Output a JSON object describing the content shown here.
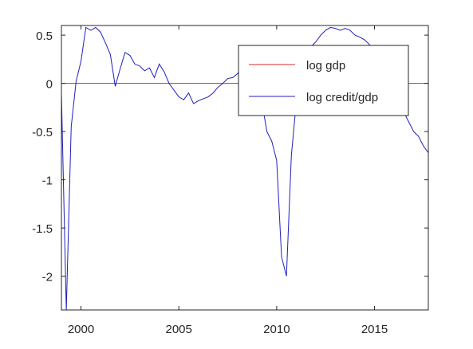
{
  "chart_data": {
    "type": "line",
    "title": "",
    "xlabel": "",
    "ylabel": "",
    "xlim": [
      1999.0,
      2017.75
    ],
    "ylim": [
      -2.35,
      0.6
    ],
    "x_ticks": [
      2000,
      2005,
      2010,
      2015
    ],
    "y_ticks": [
      0.5,
      0,
      -0.5,
      -1,
      -1.5,
      -2
    ],
    "x_tick_labels": [
      "2000",
      "2005",
      "2010",
      "2015"
    ],
    "y_tick_labels": [
      "0.5",
      "0",
      "-0.5",
      "-1",
      "-1.5",
      "-2"
    ],
    "grid": false,
    "legend_position": "top-right",
    "series": [
      {
        "name": "log gdp",
        "color": "#d62728",
        "x": [
          1999.0,
          2017.75
        ],
        "y": [
          0.0,
          0.0
        ]
      },
      {
        "name": "log credit/gdp",
        "color": "#1f1fbf",
        "x": [
          1999.0,
          1999.25,
          1999.5,
          1999.75,
          2000.0,
          2000.25,
          2000.5,
          2000.75,
          2001.0,
          2001.25,
          2001.5,
          2001.75,
          2002.0,
          2002.25,
          2002.5,
          2002.75,
          2003.0,
          2003.25,
          2003.5,
          2003.75,
          2004.0,
          2004.25,
          2004.5,
          2004.75,
          2005.0,
          2005.25,
          2005.5,
          2005.75,
          2006.0,
          2006.25,
          2006.5,
          2006.75,
          2007.0,
          2007.25,
          2007.5,
          2007.75,
          2008.0,
          2008.25,
          2008.5,
          2008.75,
          2009.0,
          2009.25,
          2009.5,
          2009.75,
          2010.0,
          2010.25,
          2010.5,
          2010.75,
          2011.0,
          2011.25,
          2011.5,
          2011.75,
          2012.0,
          2012.25,
          2012.5,
          2012.75,
          2013.0,
          2013.25,
          2013.5,
          2013.75,
          2014.0,
          2014.25,
          2014.5,
          2014.75,
          2015.0,
          2015.25,
          2015.5,
          2015.75,
          2016.0,
          2016.25,
          2016.5,
          2016.75,
          2017.0,
          2017.25,
          2017.5,
          2017.75
        ],
        "y": [
          -0.1,
          -2.35,
          -0.45,
          0.02,
          0.23,
          0.58,
          0.55,
          0.58,
          0.53,
          0.42,
          0.3,
          -0.03,
          0.15,
          0.32,
          0.29,
          0.2,
          0.18,
          0.13,
          0.16,
          0.06,
          0.2,
          0.12,
          0.0,
          -0.07,
          -0.14,
          -0.17,
          -0.1,
          -0.21,
          -0.18,
          -0.16,
          -0.14,
          -0.1,
          -0.04,
          0.0,
          0.05,
          0.06,
          0.1,
          0.18,
          0.22,
          0.16,
          0.05,
          -0.2,
          -0.5,
          -0.6,
          -0.8,
          -1.8,
          -2.0,
          -0.75,
          -0.2,
          0.1,
          0.3,
          0.38,
          0.43,
          0.5,
          0.55,
          0.58,
          0.57,
          0.55,
          0.57,
          0.55,
          0.5,
          0.48,
          0.45,
          0.4,
          0.35,
          0.2,
          0.05,
          -0.05,
          -0.12,
          -0.2,
          -0.3,
          -0.4,
          -0.5,
          -0.55,
          -0.65,
          -0.72
        ]
      }
    ]
  }
}
